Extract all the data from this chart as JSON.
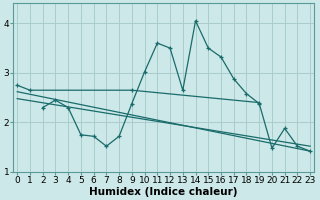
{
  "xlabel": "Humidex (Indice chaleur)",
  "bg_color": "#cce8e8",
  "grid_color": "#aacccc",
  "line_color": "#1a6b6b",
  "x_ticks": [
    0,
    1,
    2,
    3,
    4,
    5,
    6,
    7,
    8,
    9,
    10,
    11,
    12,
    13,
    14,
    15,
    16,
    17,
    18,
    19,
    20,
    21,
    22,
    23
  ],
  "ylim": [
    1.0,
    4.4
  ],
  "xlim": [
    -0.3,
    23.3
  ],
  "series1_x": [
    0,
    1,
    9,
    19
  ],
  "series1_y": [
    2.75,
    2.65,
    2.65,
    2.4
  ],
  "series2_x": [
    2,
    3,
    4,
    5,
    6,
    7,
    8,
    9,
    10,
    11,
    12,
    13,
    14,
    15,
    16,
    17,
    18,
    19,
    20,
    21,
    22,
    23
  ],
  "series2_y": [
    2.3,
    2.45,
    2.3,
    1.75,
    1.72,
    1.52,
    1.72,
    2.38,
    3.02,
    3.6,
    3.5,
    2.65,
    4.05,
    3.5,
    3.32,
    2.88,
    2.58,
    2.38,
    1.48,
    1.88,
    1.52,
    1.42
  ],
  "series3_x": [
    0,
    23
  ],
  "series3_y": [
    2.62,
    1.42
  ],
  "series4_x": [
    0,
    23
  ],
  "series4_y": [
    2.48,
    1.52
  ],
  "yticks": [
    1,
    2,
    3,
    4
  ],
  "tick_fontsize": 6.5,
  "xlabel_fontsize": 7.5
}
